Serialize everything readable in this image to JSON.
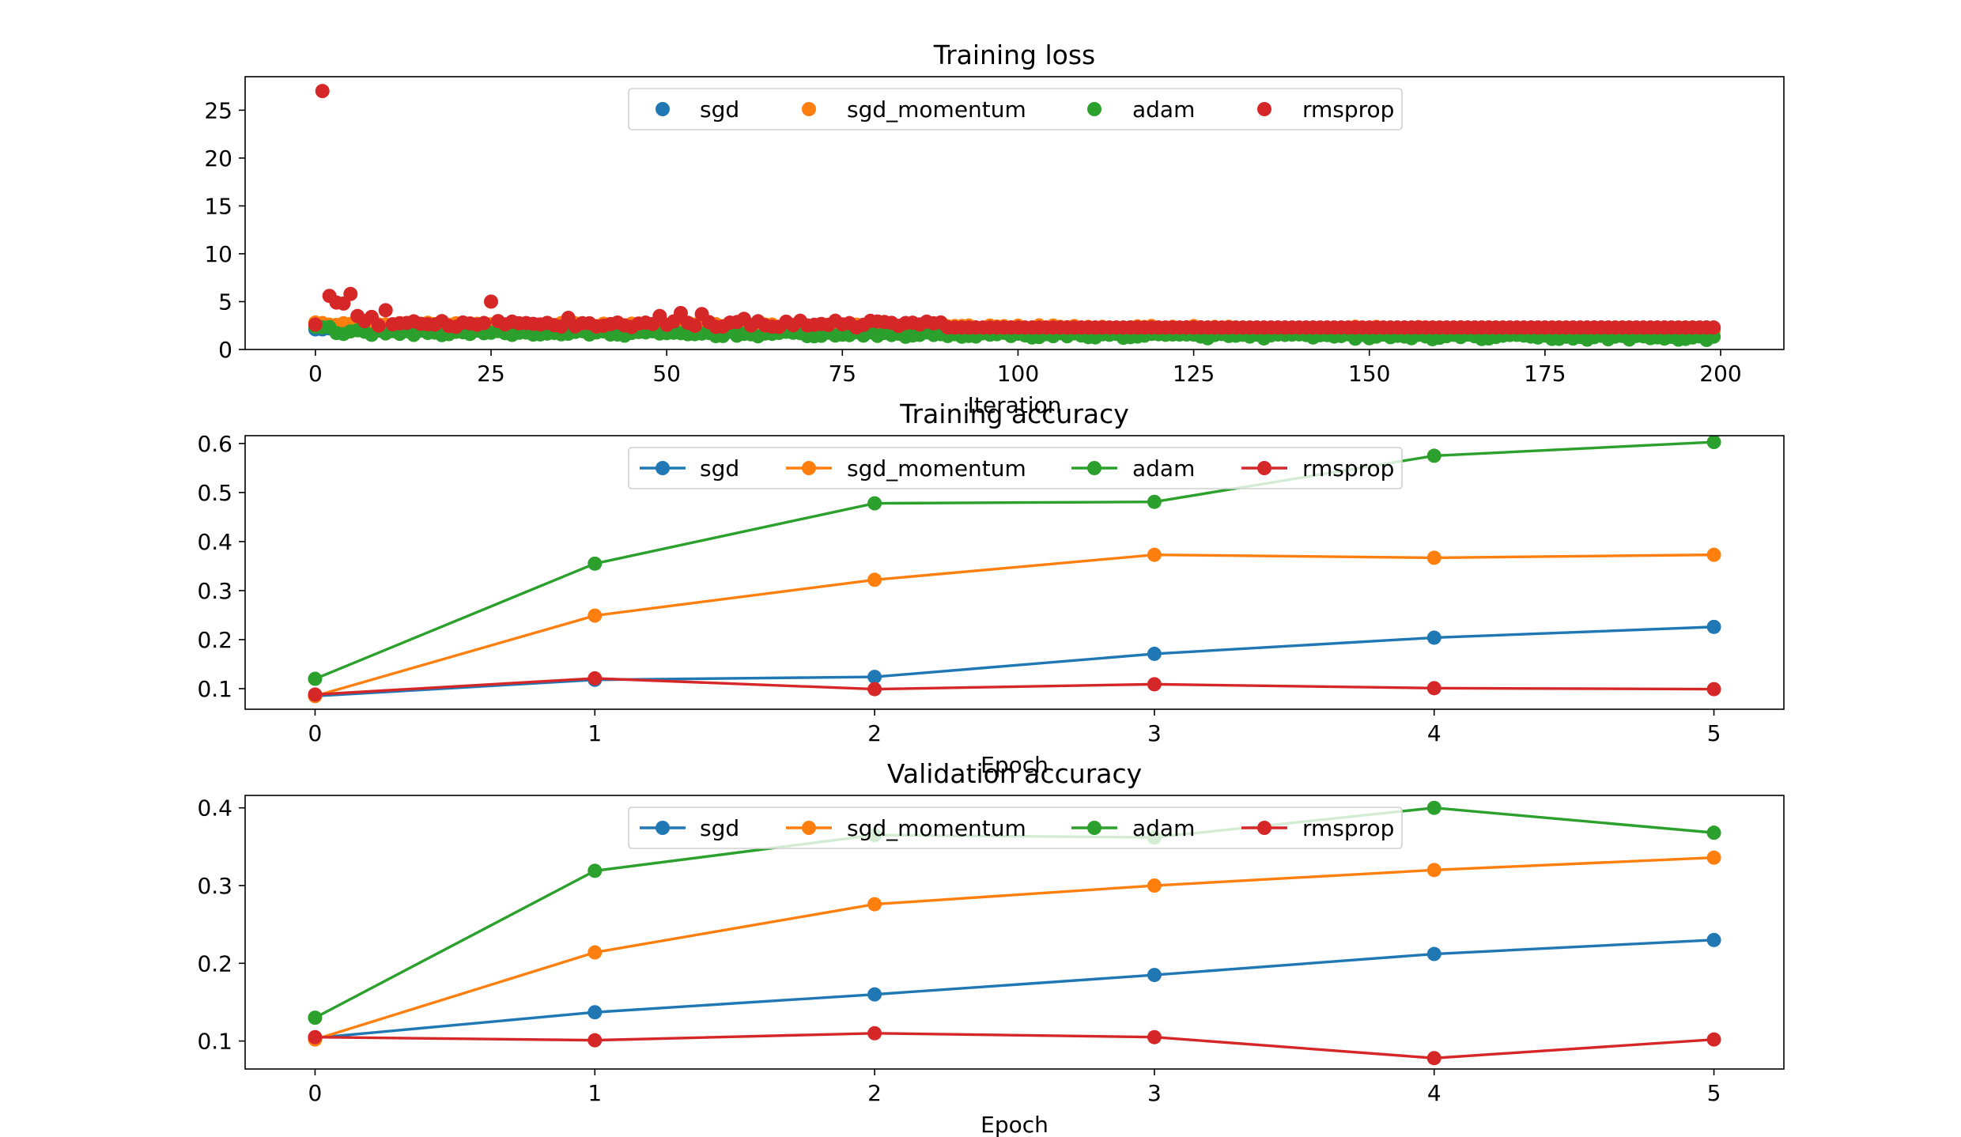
{
  "chart_data": [
    {
      "type": "scatter",
      "title": "Training loss",
      "xlabel": "Iteration",
      "ylabel": "",
      "xlim": [
        -10,
        209
      ],
      "ylim": [
        0,
        28.5
      ],
      "xticks": [
        0,
        25,
        50,
        75,
        100,
        125,
        150,
        175,
        200
      ],
      "yticks": [
        0,
        5,
        10,
        15,
        20,
        25
      ],
      "grid": false,
      "legend": "upper center",
      "series": [
        {
          "name": "sgd",
          "color": "#1f77b4"
        },
        {
          "name": "sgd_momentum",
          "color": "#ff7f0e"
        },
        {
          "name": "adam",
          "color": "#2ca02c"
        },
        {
          "name": "rmsprop",
          "color": "#d62728"
        }
      ],
      "point_summary": {
        "iterations": [
          0,
          199
        ],
        "sgd_range": [
          2.1,
          2.3
        ],
        "sgd_momentum_range": [
          2.0,
          2.9
        ],
        "adam_range": [
          1.0,
          2.4
        ],
        "rmsprop_baseline": 2.3,
        "rmsprop_outliers": [
          [
            0,
            2.6
          ],
          [
            1,
            27.0
          ],
          [
            2,
            5.6
          ],
          [
            3,
            4.9
          ],
          [
            4,
            4.8
          ],
          [
            5,
            5.8
          ],
          [
            6,
            3.5
          ],
          [
            8,
            3.4
          ],
          [
            10,
            4.1
          ],
          [
            25,
            5.0
          ],
          [
            36,
            3.3
          ],
          [
            49,
            3.5
          ],
          [
            52,
            3.8
          ],
          [
            55,
            3.7
          ],
          [
            61,
            3.2
          ],
          [
            69,
            3.0
          ],
          [
            74,
            3.0
          ]
        ]
      }
    },
    {
      "type": "line",
      "title": "Training accuracy",
      "xlabel": "Epoch",
      "ylabel": "",
      "xlim": [
        -0.25,
        5.25
      ],
      "ylim": [
        0.058,
        0.616
      ],
      "xticks": [
        0,
        1,
        2,
        3,
        4,
        5
      ],
      "yticks": [
        0.1,
        0.2,
        0.3,
        0.4,
        0.5,
        0.6
      ],
      "grid": false,
      "legend": "upper center",
      "x": [
        0,
        1,
        2,
        3,
        4,
        5
      ],
      "series": [
        {
          "name": "sgd",
          "color": "#1f77b4",
          "values": [
            0.085,
            0.118,
            0.124,
            0.171,
            0.204,
            0.226
          ]
        },
        {
          "name": "sgd_momentum",
          "color": "#ff7f0e",
          "values": [
            0.085,
            0.249,
            0.322,
            0.373,
            0.367,
            0.373
          ]
        },
        {
          "name": "adam",
          "color": "#2ca02c",
          "values": [
            0.12,
            0.355,
            0.478,
            0.481,
            0.575,
            0.603
          ]
        },
        {
          "name": "rmsprop",
          "color": "#d62728",
          "values": [
            0.088,
            0.121,
            0.099,
            0.109,
            0.101,
            0.099
          ]
        }
      ]
    },
    {
      "type": "line",
      "title": "Validation accuracy",
      "xlabel": "Epoch",
      "ylabel": "",
      "xlim": [
        -0.25,
        5.25
      ],
      "ylim": [
        0.064,
        0.416
      ],
      "xticks": [
        0,
        1,
        2,
        3,
        4,
        5
      ],
      "yticks": [
        0.1,
        0.2,
        0.3,
        0.4
      ],
      "grid": false,
      "legend": "upper center",
      "x": [
        0,
        1,
        2,
        3,
        4,
        5
      ],
      "series": [
        {
          "name": "sgd",
          "color": "#1f77b4",
          "values": [
            0.104,
            0.137,
            0.16,
            0.185,
            0.212,
            0.23
          ]
        },
        {
          "name": "sgd_momentum",
          "color": "#ff7f0e",
          "values": [
            0.102,
            0.214,
            0.276,
            0.3,
            0.32,
            0.336
          ]
        },
        {
          "name": "adam",
          "color": "#2ca02c",
          "values": [
            0.13,
            0.319,
            0.365,
            0.362,
            0.4,
            0.368
          ]
        },
        {
          "name": "rmsprop",
          "color": "#d62728",
          "values": [
            0.105,
            0.101,
            0.11,
            0.105,
            0.078,
            0.102
          ]
        }
      ]
    }
  ]
}
